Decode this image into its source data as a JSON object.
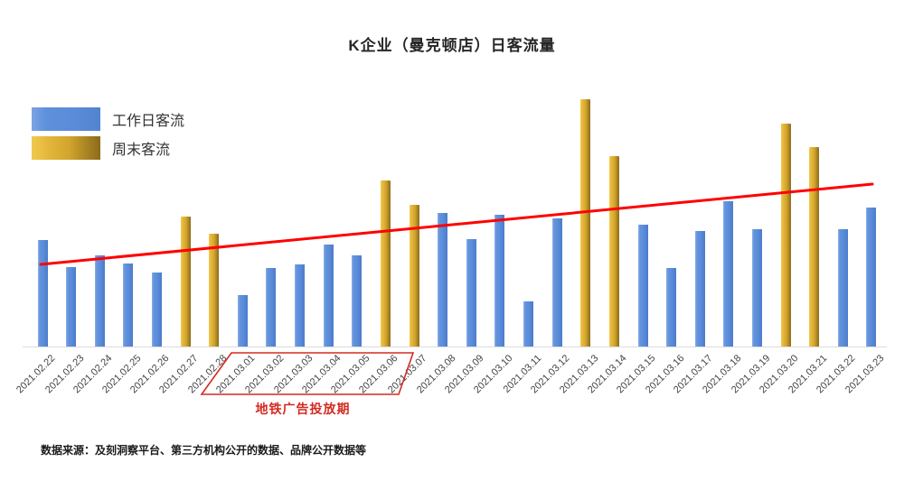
{
  "title": "K企业（曼克顿店）日客流量",
  "legend": {
    "items": [
      {
        "label": "工作日客流",
        "color": "#5B8CD9",
        "type": "weekday"
      },
      {
        "label": "周末客流",
        "color": "#D2A42C",
        "type": "weekend"
      }
    ]
  },
  "annotation": {
    "label": "地铁广告投放期"
  },
  "footer": {
    "text": "数据来源：及刻洞察平台、第三方机构公开的数据、品牌公开数据等"
  },
  "colors": {
    "weekday_bar": "#5B8CD9",
    "weekend_bar_light": "#EFC94E",
    "weekend_bar_dark": "#8A6B1C",
    "trend_line": "#FF0000",
    "highlight_box": "#D42A20",
    "axis_line": "#DCDCDC",
    "tick_label": "#444444"
  },
  "chart_data": {
    "type": "bar",
    "title": "K企业（曼克顿店）日客流量",
    "xlabel": "",
    "ylabel": "",
    "y_axis_visible": false,
    "grid": false,
    "legend_position": "top-left",
    "x_labels_rotation": -45,
    "value_unit": "relative height (no y-axis scale shown)",
    "ylim": [
      0,
      300
    ],
    "bars": [
      {
        "date": "2021.02.22",
        "value": 118,
        "type": "weekday"
      },
      {
        "date": "2021.02.23",
        "value": 88,
        "type": "weekday"
      },
      {
        "date": "2021.02.24",
        "value": 101,
        "type": "weekday"
      },
      {
        "date": "2021.02.25",
        "value": 92,
        "type": "weekday"
      },
      {
        "date": "2021.02.26",
        "value": 82,
        "type": "weekday"
      },
      {
        "date": "2021.02.27",
        "value": 144,
        "type": "weekend"
      },
      {
        "date": "2021.02.28",
        "value": 125,
        "type": "weekend"
      },
      {
        "date": "2021.03.01",
        "value": 57,
        "type": "weekday"
      },
      {
        "date": "2021.03.02",
        "value": 87,
        "type": "weekday"
      },
      {
        "date": "2021.03.03",
        "value": 91,
        "type": "weekday"
      },
      {
        "date": "2021.03.04",
        "value": 113,
        "type": "weekday"
      },
      {
        "date": "2021.03.05",
        "value": 101,
        "type": "weekday"
      },
      {
        "date": "2021.03.06",
        "value": 184,
        "type": "weekend"
      },
      {
        "date": "2021.03.07",
        "value": 157,
        "type": "weekend"
      },
      {
        "date": "2021.03.08",
        "value": 148,
        "type": "weekday"
      },
      {
        "date": "2021.03.09",
        "value": 119,
        "type": "weekday"
      },
      {
        "date": "2021.03.10",
        "value": 146,
        "type": "weekday"
      },
      {
        "date": "2021.03.11",
        "value": 50,
        "type": "weekday"
      },
      {
        "date": "2021.03.12",
        "value": 142,
        "type": "weekday"
      },
      {
        "date": "2021.03.13",
        "value": 274,
        "type": "weekend"
      },
      {
        "date": "2021.03.14",
        "value": 211,
        "type": "weekend"
      },
      {
        "date": "2021.03.15",
        "value": 135,
        "type": "weekday"
      },
      {
        "date": "2021.03.16",
        "value": 87,
        "type": "weekday"
      },
      {
        "date": "2021.03.17",
        "value": 128,
        "type": "weekday"
      },
      {
        "date": "2021.03.18",
        "value": 161,
        "type": "weekday"
      },
      {
        "date": "2021.03.19",
        "value": 130,
        "type": "weekday"
      },
      {
        "date": "2021.03.20",
        "value": 247,
        "type": "weekend"
      },
      {
        "date": "2021.03.21",
        "value": 221,
        "type": "weekend"
      },
      {
        "date": "2021.03.22",
        "value": 130,
        "type": "weekday"
      },
      {
        "date": "2021.03.23",
        "value": 154,
        "type": "weekday"
      }
    ],
    "trendline": {
      "start_value": 91,
      "end_value": 180,
      "color": "#FF0000"
    },
    "highlight_range": {
      "from": "2021.03.01",
      "to": "2021.03.07",
      "label": "地铁广告投放期"
    }
  }
}
